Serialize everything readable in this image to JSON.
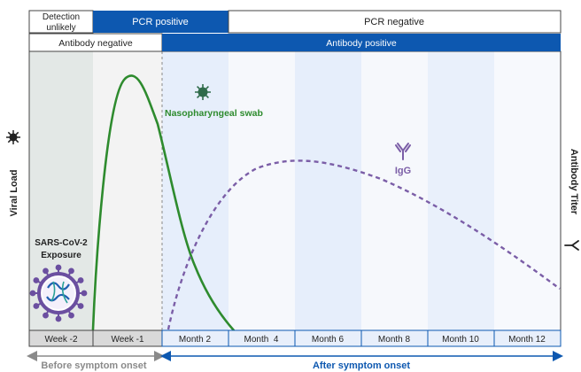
{
  "top_bar": {
    "detection": "Detection unlikely",
    "detection_lines": [
      "Detection",
      "unlikely"
    ],
    "pcr_positive": "PCR positive",
    "pcr_negative": "PCR negative"
  },
  "antibody_bar": {
    "negative": "Antibody negative",
    "positive": "Antibody positive"
  },
  "axes": {
    "left_label": "Viral Load",
    "right_label": "Antibody Titer"
  },
  "annotations": {
    "exposure": "SARS-CoV-2 Exposure",
    "exposure_lines": [
      "SARS-CoV-2",
      "Exposure"
    ],
    "swab": "Nasopharyngeal swab",
    "igg": "IgG"
  },
  "timeline": {
    "labels": [
      "Week -2",
      "Week -1",
      "Month 2",
      "Month  4",
      "Month 6",
      "Month 8",
      "Month 10",
      "Month 12"
    ]
  },
  "bottom": {
    "before": "Before symptom onset",
    "after": "After symptom onset"
  },
  "colors": {
    "blue": "#0d58b0",
    "green": "#2e8b2e",
    "purple": "#7b5ea7",
    "grey_band": "#e3e8e6",
    "light_blue": "#e3ecfa",
    "virus_green": "#2f6b4a"
  },
  "icons": [
    "sun-virus-icon",
    "antibody-icon",
    "coronavirus-icon"
  ]
}
